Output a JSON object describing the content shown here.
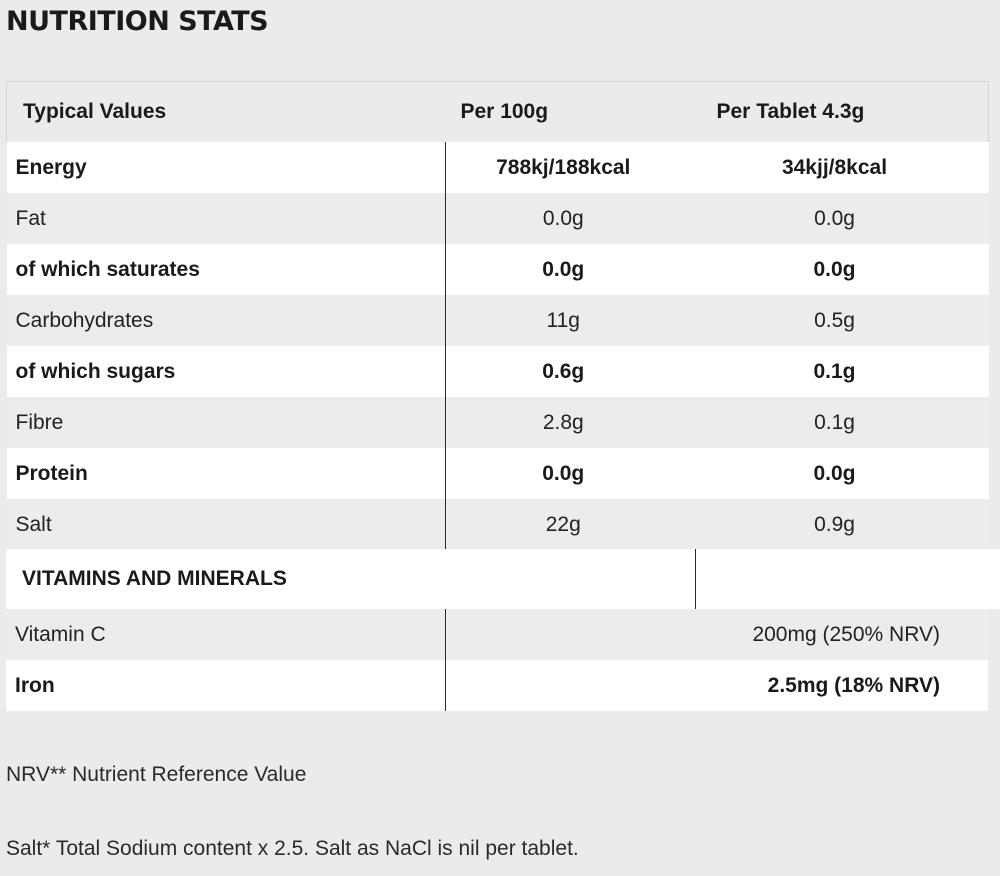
{
  "title": "NUTRITION STATS",
  "table": {
    "headers": [
      "Typical Values",
      "Per 100g",
      "Per Tablet 4.3g"
    ],
    "rows": [
      {
        "label": "Energy",
        "per100": "788kj/188kcal",
        "perTablet": "34kjj/8kcal",
        "bold": true
      },
      {
        "label": "Fat",
        "per100": "0.0g",
        "perTablet": "0.0g",
        "bold": false
      },
      {
        "label": "of which saturates",
        "per100": "0.0g",
        "perTablet": "0.0g",
        "bold": true
      },
      {
        "label": "Carbohydrates",
        "per100": "11g",
        "perTablet": "0.5g",
        "bold": false
      },
      {
        "label": "of which sugars",
        "per100": "0.6g",
        "perTablet": "0.1g",
        "bold": true
      },
      {
        "label": "Fibre",
        "per100": "2.8g",
        "perTablet": "0.1g",
        "bold": false
      },
      {
        "label": "Protein",
        "per100": "0.0g",
        "perTablet": "0.0g",
        "bold": true
      },
      {
        "label": "Salt",
        "per100": "22g",
        "perTablet": "0.9g",
        "bold": false
      }
    ]
  },
  "vitamins": {
    "heading": "VITAMINS AND MINERALS",
    "rows": [
      {
        "label": "Vitamin C",
        "value": "200mg (250% NRV)",
        "bold": false
      },
      {
        "label": "Iron",
        "value": "2.5mg (18% NRV)",
        "bold": true
      }
    ]
  },
  "footnotes": {
    "nrv": "NRV** Nutrient Reference Value",
    "salt": "Salt* Total Sodium content x 2.5. Salt as NaCl is nil per tablet."
  }
}
